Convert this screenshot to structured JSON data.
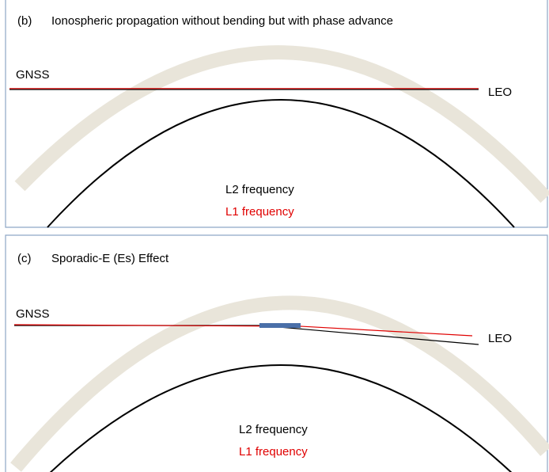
{
  "panels": [
    {
      "label": "(b)",
      "title": "Ionospheric propagation without bending but with phase advance",
      "gnss": "GNSS",
      "leo": "LEO",
      "l2": "L2 frequency",
      "l1": "L1 frequency"
    },
    {
      "label": "(c)",
      "title": "Sporadic-E (Es) Effect",
      "gnss": "GNSS",
      "leo": "LEO",
      "l2": "L2 frequency",
      "l1": "L1 frequency"
    }
  ]
}
